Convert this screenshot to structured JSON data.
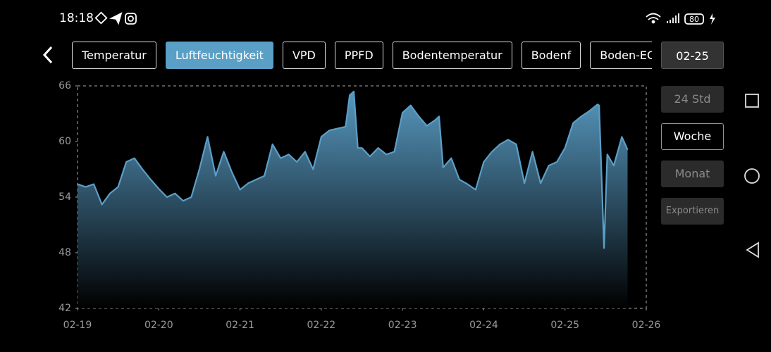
{
  "status_bar": {
    "time": "18:18",
    "battery": "80"
  },
  "tabs": {
    "labels": [
      "Temperatur",
      "Luftfeuchtigkeit",
      "VPD",
      "PPFD",
      "Bodentemperatur",
      "Bodenf",
      "Boden-EC"
    ],
    "active": 1
  },
  "date_button": "02-25",
  "range_buttons": {
    "labels": [
      "24 Std",
      "Woche",
      "Monat"
    ],
    "active": 1
  },
  "export_button": "Exportieren",
  "chart_data": {
    "type": "area",
    "color": "#5b9fc8",
    "x": [
      0,
      0.1,
      0.2,
      0.3,
      0.4,
      0.5,
      0.6,
      0.7,
      0.8,
      0.9,
      1.0,
      1.1,
      1.2,
      1.3,
      1.4,
      1.5,
      1.6,
      1.7,
      1.8,
      1.9,
      2.0,
      2.1,
      2.2,
      2.3,
      2.4,
      2.5,
      2.6,
      2.7,
      2.8,
      2.9,
      3.0,
      3.1,
      3.2,
      3.3,
      3.35,
      3.4,
      3.45,
      3.5,
      3.6,
      3.7,
      3.8,
      3.9,
      4.0,
      4.1,
      4.2,
      4.3,
      4.4,
      4.45,
      4.5,
      4.6,
      4.7,
      4.8,
      4.9,
      5.0,
      5.1,
      5.2,
      5.3,
      5.4,
      5.5,
      5.6,
      5.7,
      5.8,
      5.9,
      6.0,
      6.1,
      6.2,
      6.3,
      6.4,
      6.42,
      6.48,
      6.52,
      6.6,
      6.7,
      6.77
    ],
    "values": [
      55.4,
      55.1,
      55.4,
      53.2,
      54.4,
      55.1,
      57.8,
      58.2,
      57.0,
      55.9,
      54.9,
      54.0,
      54.4,
      53.6,
      54.0,
      57.0,
      60.5,
      56.3,
      58.9,
      56.7,
      54.8,
      55.5,
      55.9,
      56.3,
      59.7,
      58.2,
      58.6,
      57.8,
      58.9,
      57.0,
      60.5,
      61.2,
      61.4,
      61.6,
      65.0,
      65.4,
      59.3,
      59.3,
      58.4,
      59.3,
      58.6,
      58.9,
      63.1,
      63.9,
      62.7,
      61.7,
      62.3,
      62.7,
      57.2,
      58.2,
      55.9,
      55.4,
      54.8,
      57.8,
      58.9,
      59.7,
      60.2,
      59.7,
      55.5,
      58.9,
      55.5,
      57.4,
      57.8,
      59.3,
      62.0,
      62.7,
      63.3,
      64.0,
      63.9,
      48.5,
      58.6,
      57.4,
      60.5,
      59.1
    ],
    "xlim": [
      0,
      7
    ],
    "xticks": [
      {
        "value": 0,
        "label": "02-19"
      },
      {
        "value": 1,
        "label": "02-20"
      },
      {
        "value": 2,
        "label": "02-21"
      },
      {
        "value": 3,
        "label": "02-22"
      },
      {
        "value": 4,
        "label": "02-23"
      },
      {
        "value": 5,
        "label": "02-24"
      },
      {
        "value": 6,
        "label": "02-25"
      },
      {
        "value": 7,
        "label": "02-26"
      }
    ],
    "ylim": [
      42,
      66
    ],
    "yticks": [
      42,
      48,
      54,
      60,
      66
    ]
  }
}
